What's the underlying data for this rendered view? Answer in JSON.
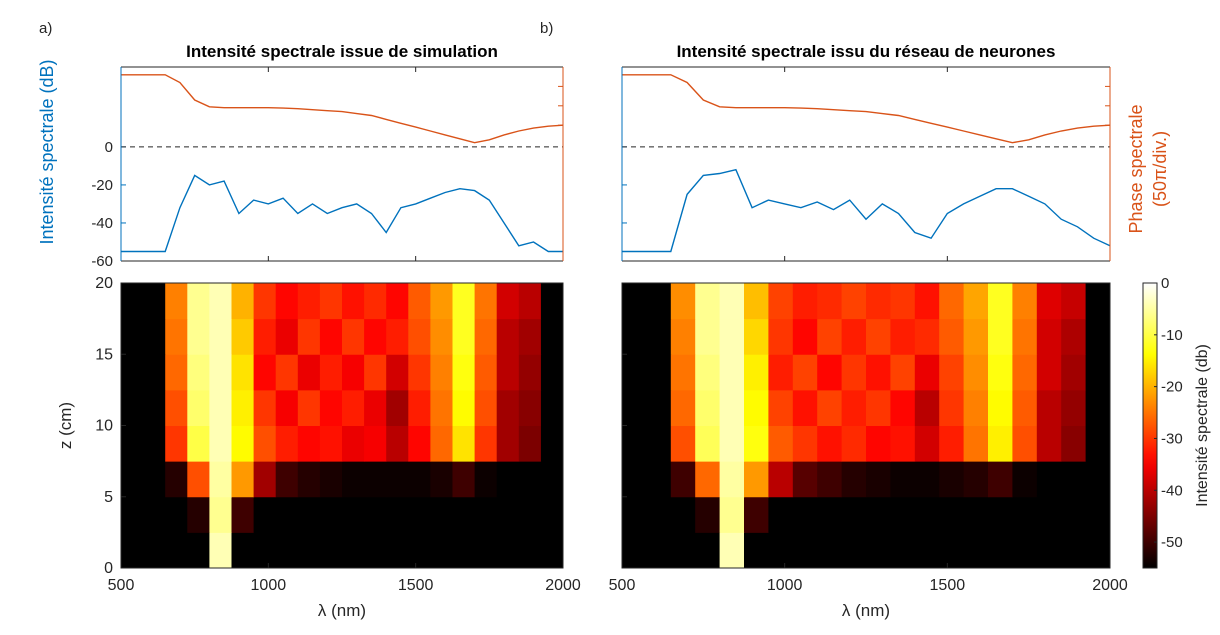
{
  "chart_data": [
    {
      "type": "line",
      "panel_label": "a)",
      "title": "Intensité spectrale issue de simulation",
      "ylabel": "Intensité spectrale (dB)",
      "x": [
        500,
        550,
        600,
        650,
        700,
        750,
        800,
        850,
        900,
        950,
        1000,
        1050,
        1100,
        1150,
        1200,
        1250,
        1300,
        1350,
        1400,
        1450,
        1500,
        1550,
        1600,
        1650,
        1700,
        1750,
        1800,
        1850,
        1900,
        1950,
        2000
      ],
      "series": [
        {
          "color": "#0072bd",
          "values": [
            -55,
            -55,
            -55,
            -55,
            -32,
            -15,
            -20,
            -18,
            -35,
            -28,
            -30,
            -27,
            -35,
            -30,
            -35,
            -32,
            -30,
            -35,
            -45,
            -32,
            -30,
            -27,
            -24,
            -22,
            -23,
            -28,
            -40,
            -52,
            -50,
            -55,
            -55
          ]
        },
        {
          "color": "#d95319",
          "axis": "y2",
          "values": [
            9.6,
            9.6,
            9.6,
            9.6,
            9.2,
            8.3,
            7.95,
            7.9,
            7.9,
            7.9,
            7.9,
            7.88,
            7.85,
            7.8,
            7.75,
            7.7,
            7.6,
            7.5,
            7.3,
            7.1,
            6.9,
            6.7,
            6.5,
            6.3,
            6.1,
            6.25,
            6.5,
            6.7,
            6.85,
            6.95,
            7.0
          ]
        }
      ],
      "xlim": [
        500,
        2000
      ],
      "xticks": [
        500,
        1000,
        1500,
        2000
      ],
      "show_xtick_labels": false,
      "ylim": [
        -60,
        42
      ],
      "yticks": [
        -60,
        -40,
        -20,
        0
      ],
      "y2lim": [
        0,
        10
      ],
      "y2ticks": [
        7,
        8,
        9,
        10
      ],
      "hline": 0
    },
    {
      "type": "heatmap",
      "xlabel": "λ (nm)",
      "ylabel": "z (cm)",
      "xbins": [
        500,
        575,
        650,
        725,
        800,
        875,
        950,
        1025,
        1100,
        1175,
        1250,
        1325,
        1400,
        1475,
        1550,
        1625,
        1700,
        1775,
        1850,
        1925,
        2000
      ],
      "ybins": [
        0,
        2.5,
        5,
        7.5,
        10,
        12.5,
        15,
        17.5,
        20
      ],
      "z": [
        [
          -55,
          -55,
          -55,
          -55,
          -4,
          -55,
          -55,
          -55,
          -55,
          -55,
          -55,
          -55,
          -55,
          -55,
          -55,
          -55,
          -55,
          -55,
          -55,
          -55
        ],
        [
          -55,
          -55,
          -55,
          -52,
          -6,
          -50,
          -55,
          -55,
          -55,
          -55,
          -55,
          -55,
          -55,
          -55,
          -55,
          -55,
          -55,
          -55,
          -55,
          -55
        ],
        [
          -55,
          -55,
          -52,
          -28,
          -5,
          -22,
          -42,
          -50,
          -52,
          -53,
          -54,
          -54,
          -54,
          -54,
          -53,
          -50,
          -54,
          -55,
          -55,
          -55
        ],
        [
          -55,
          -55,
          -30,
          -10,
          -4,
          -14,
          -28,
          -32,
          -34,
          -33,
          -36,
          -35,
          -40,
          -34,
          -26,
          -16,
          -30,
          -42,
          -45,
          -55
        ],
        [
          -55,
          -55,
          -28,
          -8,
          -4,
          -15,
          -30,
          -35,
          -30,
          -34,
          -32,
          -36,
          -42,
          -32,
          -25,
          -14,
          -28,
          -42,
          -44,
          -55
        ],
        [
          -55,
          -55,
          -26,
          -7,
          -4,
          -16,
          -34,
          -30,
          -36,
          -32,
          -35,
          -30,
          -38,
          -30,
          -24,
          -13,
          -27,
          -40,
          -43,
          -55
        ],
        [
          -55,
          -55,
          -25,
          -6,
          -4,
          -18,
          -32,
          -36,
          -30,
          -34,
          -30,
          -34,
          -32,
          -28,
          -23,
          -12,
          -26,
          -40,
          -42,
          -55
        ],
        [
          -55,
          -55,
          -24,
          -6,
          -4,
          -20,
          -30,
          -34,
          -32,
          -30,
          -33,
          -31,
          -34,
          -27,
          -22,
          -12,
          -25,
          -38,
          -40,
          -55
        ]
      ],
      "xlim": [
        500,
        2000
      ],
      "xticks": [
        500,
        1000,
        1500,
        2000
      ],
      "ylim": [
        0,
        20
      ],
      "yticks": [
        0,
        5,
        10,
        15,
        20
      ],
      "show_ytick_labels": true
    },
    {
      "type": "line",
      "panel_label": "b)",
      "title": "Intensité spectrale issu du réseau de neurones",
      "y2label": [
        "Phase spectrale",
        "(50π/div.)"
      ],
      "x": [
        500,
        550,
        600,
        650,
        700,
        750,
        800,
        850,
        900,
        950,
        1000,
        1050,
        1100,
        1150,
        1200,
        1250,
        1300,
        1350,
        1400,
        1450,
        1500,
        1550,
        1600,
        1650,
        1700,
        1750,
        1800,
        1850,
        1900,
        1950,
        2000
      ],
      "series": [
        {
          "color": "#0072bd",
          "values": [
            -55,
            -55,
            -55,
            -55,
            -25,
            -15,
            -14,
            -12,
            -32,
            -28,
            -30,
            -32,
            -29,
            -33,
            -28,
            -38,
            -30,
            -35,
            -45,
            -48,
            -35,
            -30,
            -26,
            -22,
            -22,
            -26,
            -30,
            -38,
            -42,
            -48,
            -52
          ]
        },
        {
          "color": "#d95319",
          "axis": "y2",
          "values": [
            9.6,
            9.6,
            9.6,
            9.6,
            9.2,
            8.3,
            7.95,
            7.9,
            7.9,
            7.9,
            7.9,
            7.88,
            7.85,
            7.8,
            7.75,
            7.7,
            7.6,
            7.5,
            7.3,
            7.1,
            6.9,
            6.7,
            6.5,
            6.3,
            6.1,
            6.25,
            6.5,
            6.7,
            6.85,
            6.95,
            7.0
          ]
        }
      ],
      "xlim": [
        500,
        2000
      ],
      "xticks": [
        500,
        1000,
        1500,
        2000
      ],
      "show_xtick_labels": false,
      "ylim": [
        -60,
        42
      ],
      "yticks": [
        -60,
        -40,
        -20,
        0
      ],
      "y2lim": [
        0,
        10
      ],
      "y2ticks": [
        7,
        8,
        9,
        10
      ],
      "hline": 0
    },
    {
      "type": "heatmap",
      "xlabel": "λ (nm)",
      "xbins": [
        500,
        575,
        650,
        725,
        800,
        875,
        950,
        1025,
        1100,
        1175,
        1250,
        1325,
        1400,
        1475,
        1550,
        1625,
        1700,
        1775,
        1850,
        1925,
        2000
      ],
      "ybins": [
        0,
        2.5,
        5,
        7.5,
        10,
        12.5,
        15,
        17.5,
        20
      ],
      "z": [
        [
          -55,
          -55,
          -55,
          -55,
          -4,
          -55,
          -55,
          -55,
          -55,
          -55,
          -55,
          -55,
          -55,
          -55,
          -55,
          -55,
          -55,
          -55,
          -55,
          -55
        ],
        [
          -55,
          -55,
          -55,
          -52,
          -6,
          -50,
          -55,
          -55,
          -55,
          -55,
          -55,
          -55,
          -55,
          -55,
          -55,
          -55,
          -55,
          -55,
          -55,
          -55
        ],
        [
          -55,
          -55,
          -50,
          -26,
          -5,
          -22,
          -40,
          -48,
          -50,
          -52,
          -53,
          -54,
          -54,
          -53,
          -52,
          -50,
          -54,
          -55,
          -55,
          -55
        ],
        [
          -55,
          -55,
          -28,
          -9,
          -4,
          -13,
          -27,
          -30,
          -33,
          -31,
          -34,
          -33,
          -38,
          -32,
          -25,
          -15,
          -28,
          -40,
          -44,
          -55
        ],
        [
          -55,
          -55,
          -26,
          -8,
          -4,
          -14,
          -29,
          -33,
          -29,
          -32,
          -30,
          -34,
          -40,
          -30,
          -24,
          -14,
          -27,
          -40,
          -43,
          -55
        ],
        [
          -55,
          -55,
          -25,
          -7,
          -4,
          -15,
          -32,
          -29,
          -34,
          -30,
          -33,
          -29,
          -36,
          -29,
          -23,
          -13,
          -26,
          -38,
          -42,
          -55
        ],
        [
          -55,
          -55,
          -24,
          -6,
          -4,
          -17,
          -30,
          -34,
          -29,
          -32,
          -29,
          -32,
          -31,
          -27,
          -22,
          -12,
          -25,
          -38,
          -41,
          -55
        ],
        [
          -55,
          -55,
          -23,
          -6,
          -4,
          -19,
          -29,
          -32,
          -31,
          -29,
          -31,
          -30,
          -33,
          -26,
          -21,
          -12,
          -24,
          -37,
          -39,
          -55
        ]
      ],
      "xlim": [
        500,
        2000
      ],
      "xticks": [
        500,
        1000,
        1500,
        2000
      ],
      "ylim": [
        0,
        20
      ],
      "yticks": [
        0,
        5,
        10,
        15,
        20
      ],
      "show_ytick_labels": false
    }
  ],
  "colorbar": {
    "label": "Intensité spectrale (db)",
    "zlim": [
      -55,
      0
    ],
    "ticks": [
      0,
      -10,
      -20,
      -30,
      -40,
      -50
    ]
  }
}
